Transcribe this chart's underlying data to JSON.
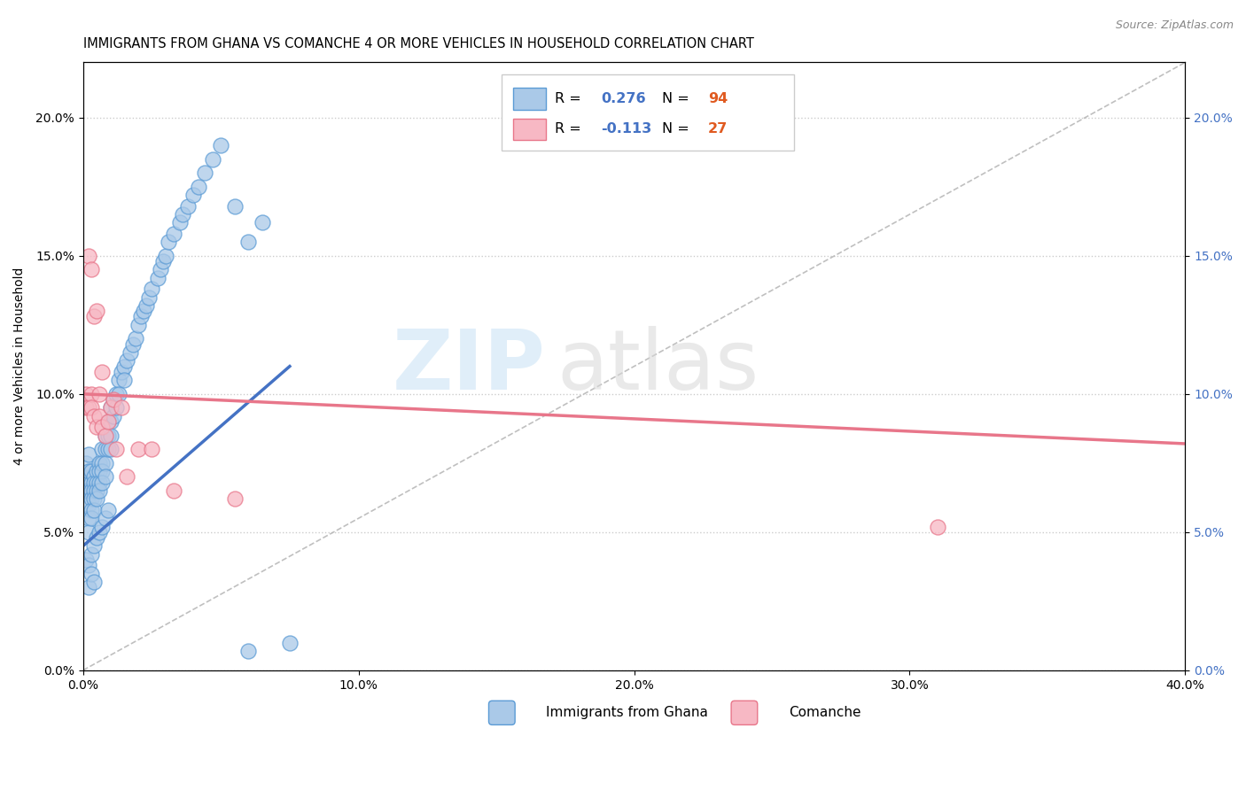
{
  "title": "IMMIGRANTS FROM GHANA VS COMANCHE 4 OR MORE VEHICLES IN HOUSEHOLD CORRELATION CHART",
  "source": "Source: ZipAtlas.com",
  "ylabel": "4 or more Vehicles in Household",
  "xmin": 0.0,
  "xmax": 0.4,
  "ymin": 0.0,
  "ymax": 0.22,
  "r_ghana": 0.276,
  "n_ghana": 94,
  "r_comanche": -0.113,
  "n_comanche": 27,
  "color_ghana_fill": "#aac9e8",
  "color_ghana_edge": "#5b9bd5",
  "color_comanche_fill": "#f7b8c4",
  "color_comanche_edge": "#e8768a",
  "color_ghana_line": "#4472c4",
  "color_comanche_line": "#e8768a",
  "color_diag_line": "#b0b0b0",
  "ghana_points_x": [
    0.001,
    0.001,
    0.001,
    0.001,
    0.002,
    0.002,
    0.002,
    0.002,
    0.002,
    0.002,
    0.003,
    0.003,
    0.003,
    0.003,
    0.003,
    0.003,
    0.004,
    0.004,
    0.004,
    0.004,
    0.004,
    0.005,
    0.005,
    0.005,
    0.005,
    0.006,
    0.006,
    0.006,
    0.006,
    0.007,
    0.007,
    0.007,
    0.007,
    0.008,
    0.008,
    0.008,
    0.008,
    0.009,
    0.009,
    0.009,
    0.01,
    0.01,
    0.01,
    0.01,
    0.011,
    0.011,
    0.012,
    0.012,
    0.013,
    0.013,
    0.014,
    0.015,
    0.015,
    0.016,
    0.017,
    0.018,
    0.019,
    0.02,
    0.021,
    0.022,
    0.023,
    0.024,
    0.025,
    0.027,
    0.028,
    0.029,
    0.03,
    0.031,
    0.033,
    0.035,
    0.036,
    0.038,
    0.04,
    0.042,
    0.044,
    0.047,
    0.05,
    0.055,
    0.06,
    0.065,
    0.001,
    0.002,
    0.003,
    0.004,
    0.005,
    0.006,
    0.007,
    0.008,
    0.009,
    0.06,
    0.002,
    0.003,
    0.004,
    0.075
  ],
  "ghana_points_y": [
    0.07,
    0.075,
    0.068,
    0.065,
    0.072,
    0.078,
    0.065,
    0.06,
    0.055,
    0.05,
    0.068,
    0.072,
    0.065,
    0.062,
    0.058,
    0.055,
    0.07,
    0.068,
    0.065,
    0.062,
    0.058,
    0.072,
    0.068,
    0.065,
    0.062,
    0.075,
    0.072,
    0.068,
    0.065,
    0.08,
    0.075,
    0.072,
    0.068,
    0.085,
    0.08,
    0.075,
    0.07,
    0.09,
    0.085,
    0.08,
    0.095,
    0.09,
    0.085,
    0.08,
    0.098,
    0.092,
    0.1,
    0.095,
    0.105,
    0.1,
    0.108,
    0.11,
    0.105,
    0.112,
    0.115,
    0.118,
    0.12,
    0.125,
    0.128,
    0.13,
    0.132,
    0.135,
    0.138,
    0.142,
    0.145,
    0.148,
    0.15,
    0.155,
    0.158,
    0.162,
    0.165,
    0.168,
    0.172,
    0.175,
    0.18,
    0.185,
    0.19,
    0.168,
    0.155,
    0.162,
    0.04,
    0.038,
    0.042,
    0.045,
    0.048,
    0.05,
    0.052,
    0.055,
    0.058,
    0.007,
    0.03,
    0.035,
    0.032,
    0.01
  ],
  "comanche_points_x": [
    0.001,
    0.001,
    0.002,
    0.002,
    0.003,
    0.003,
    0.003,
    0.004,
    0.004,
    0.005,
    0.005,
    0.006,
    0.006,
    0.007,
    0.007,
    0.008,
    0.009,
    0.01,
    0.011,
    0.012,
    0.014,
    0.016,
    0.02,
    0.025,
    0.033,
    0.055,
    0.31
  ],
  "comanche_points_y": [
    0.1,
    0.095,
    0.15,
    0.095,
    0.145,
    0.1,
    0.095,
    0.128,
    0.092,
    0.13,
    0.088,
    0.1,
    0.092,
    0.108,
    0.088,
    0.085,
    0.09,
    0.095,
    0.098,
    0.08,
    0.095,
    0.07,
    0.08,
    0.08,
    0.065,
    0.062,
    0.052
  ],
  "ghana_trendline_x": [
    0.0,
    0.075
  ],
  "ghana_trendline_y": [
    0.045,
    0.11
  ],
  "comanche_trendline_x": [
    0.0,
    0.4
  ],
  "comanche_trendline_y": [
    0.1,
    0.082
  ]
}
